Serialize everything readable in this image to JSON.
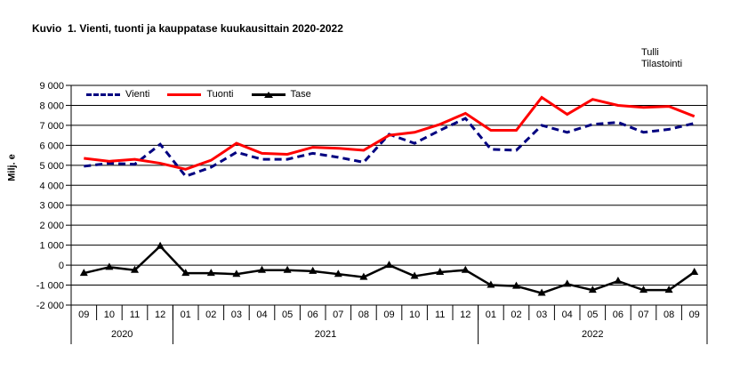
{
  "title": "Kuvio  1. Vienti, tuonti ja kauppatase kuukausittain 2020-2022",
  "source": {
    "line1": "Tulli",
    "line2": "Tilastointi"
  },
  "chart_data": {
    "type": "line",
    "title": "Kuvio 1. Vienti, tuonti ja kauppatase kuukausittain 2020-2022",
    "ylabel": "Milj. e",
    "xlabel": "",
    "ylim": [
      -2000,
      9000
    ],
    "ytick_step": 1000,
    "grid": true,
    "legend_position": "top-left-inside",
    "x_months": [
      "09",
      "10",
      "11",
      "12",
      "01",
      "02",
      "03",
      "04",
      "05",
      "06",
      "07",
      "08",
      "09",
      "10",
      "11",
      "12",
      "01",
      "02",
      "03",
      "04",
      "05",
      "06",
      "07",
      "08",
      "09"
    ],
    "year_groups": [
      {
        "label": "2020",
        "count": 4
      },
      {
        "label": "2021",
        "count": 12
      },
      {
        "label": "2022",
        "count": 9
      }
    ],
    "series": [
      {
        "name": "Vienti",
        "color": "#000080",
        "style": "dashed",
        "marker": "none",
        "values": [
          4950,
          5100,
          5050,
          6050,
          4450,
          4900,
          5650,
          5300,
          5300,
          5600,
          5400,
          5150,
          6550,
          6100,
          6750,
          7350,
          5800,
          5750,
          7000,
          6650,
          7050,
          7150,
          6650,
          6800,
          7100
        ]
      },
      {
        "name": "Tuonti",
        "color": "#ff0000",
        "style": "solid",
        "marker": "none",
        "values": [
          5350,
          5200,
          5300,
          5100,
          4800,
          5250,
          6100,
          5600,
          5550,
          5900,
          5850,
          5750,
          6500,
          6650,
          7050,
          7600,
          6750,
          6750,
          8400,
          7550,
          8300,
          8000,
          7900,
          7950,
          7450
        ]
      },
      {
        "name": "Tase",
        "color": "#000000",
        "style": "solid",
        "marker": "triangle",
        "values": [
          -400,
          -100,
          -250,
          950,
          -400,
          -400,
          -450,
          -250,
          -250,
          -300,
          -450,
          -600,
          0,
          -550,
          -350,
          -250,
          -1000,
          -1050,
          -1400,
          -950,
          -1250,
          -800,
          -1250,
          -1250,
          -350
        ]
      }
    ]
  }
}
